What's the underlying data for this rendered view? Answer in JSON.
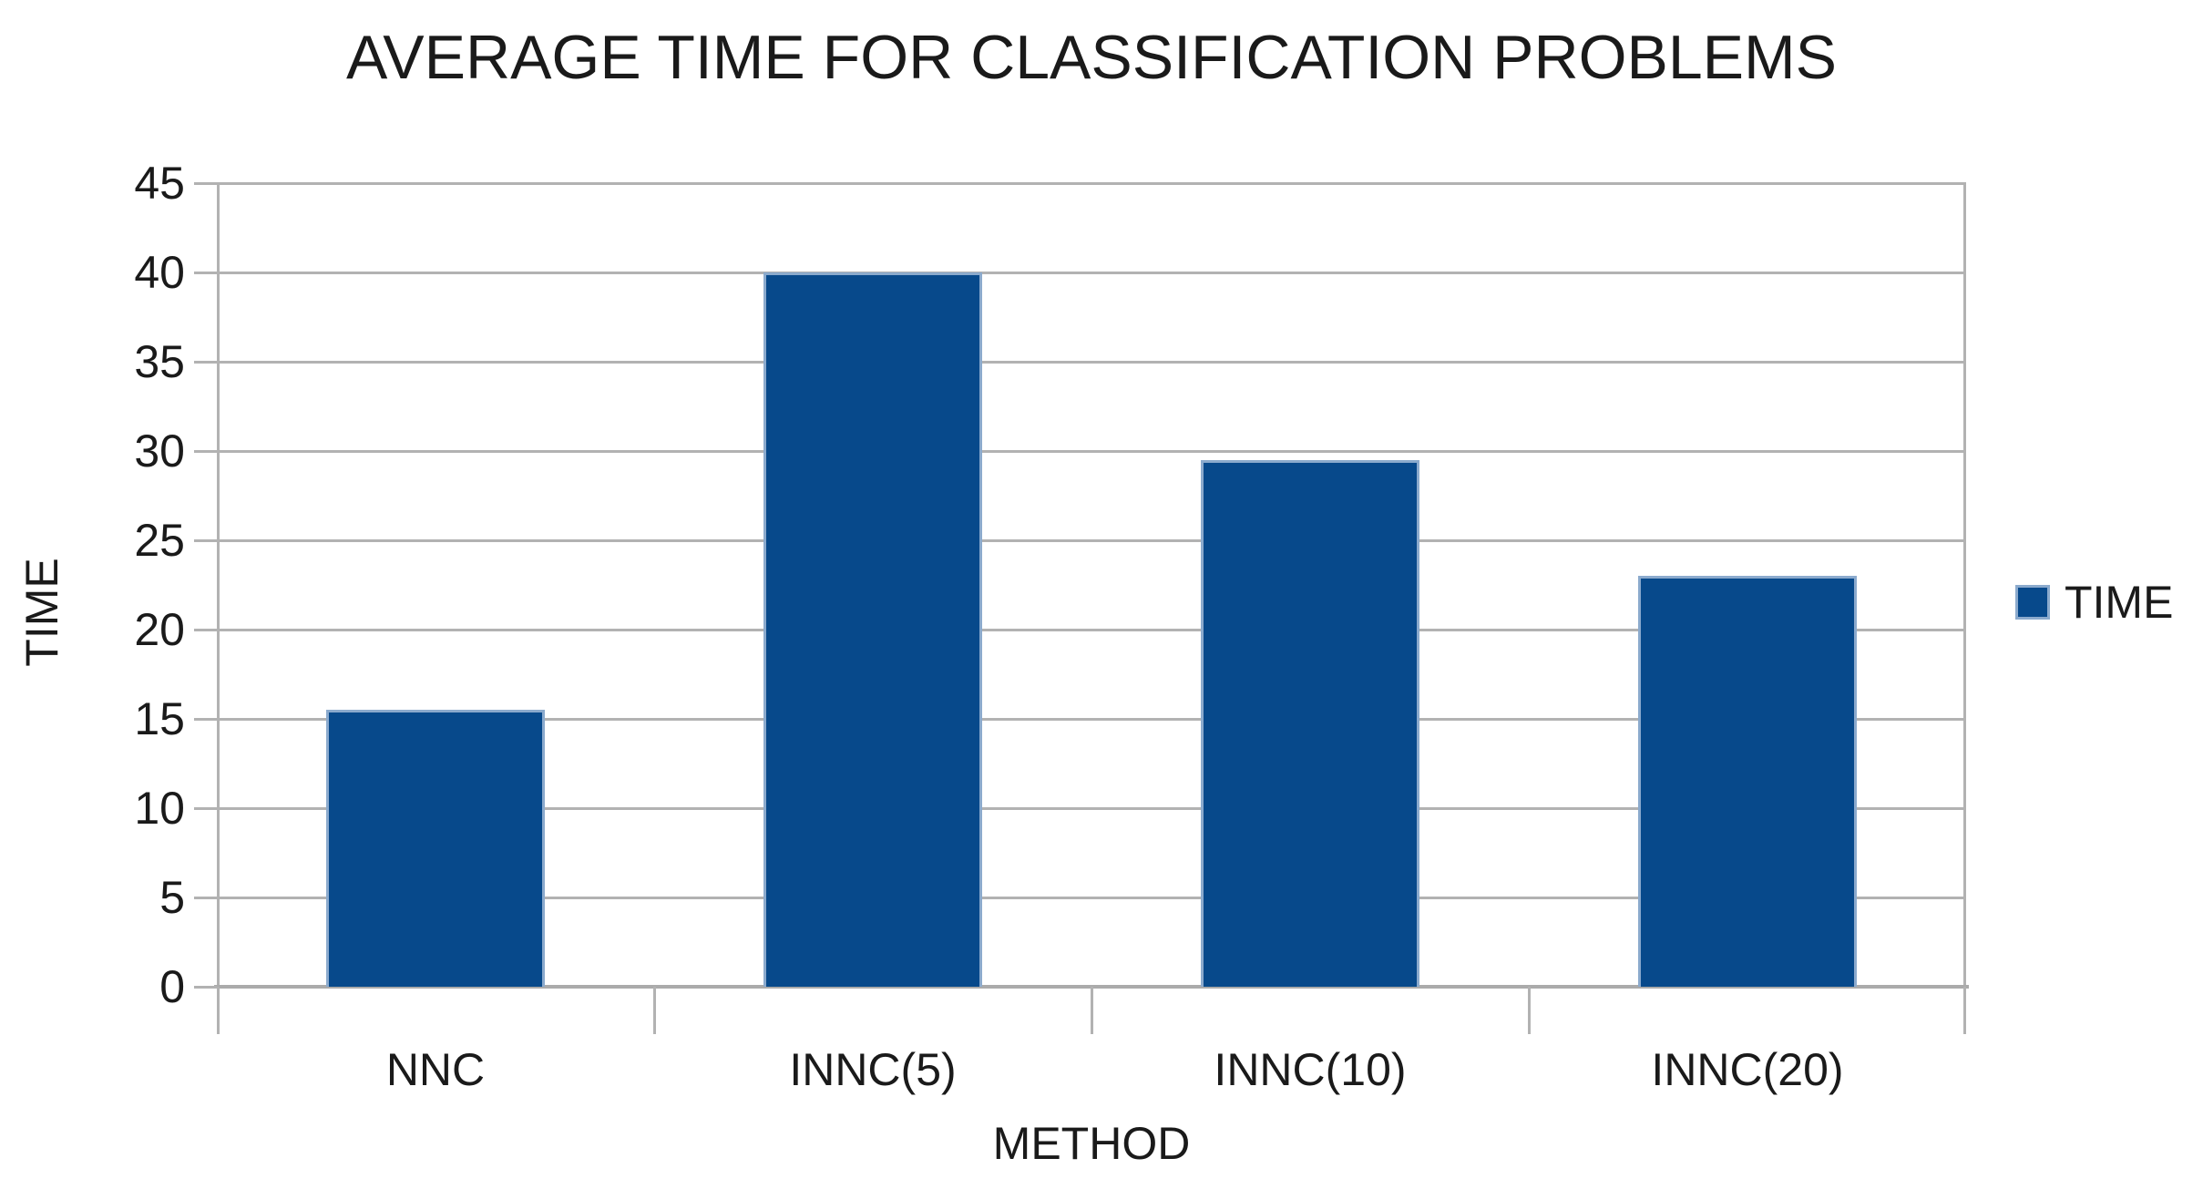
{
  "chart_data": {
    "type": "bar",
    "title": "AVERAGE TIME FOR CLASSIFICATION PROBLEMS",
    "categories": [
      "NNC",
      "INNC(5)",
      "INNC(10)",
      "INNC(20)"
    ],
    "series": [
      {
        "name": "TIME",
        "values": [
          15.5,
          40,
          29.5,
          23
        ]
      }
    ],
    "xlabel": "METHOD",
    "ylabel": "TIME",
    "ylim": [
      0,
      45
    ],
    "ytick_step": 5,
    "grid": "horizontal-only",
    "legend_position": "right",
    "legend_entries": [
      "TIME"
    ],
    "colors": {
      "bar_fill": "#07498B",
      "bar_border": "#8BAACD",
      "grid_line": "#B2B2B2",
      "axis_line": "#ABABAB",
      "text": "#1A1A1A",
      "background": "#FFFFFF"
    }
  }
}
